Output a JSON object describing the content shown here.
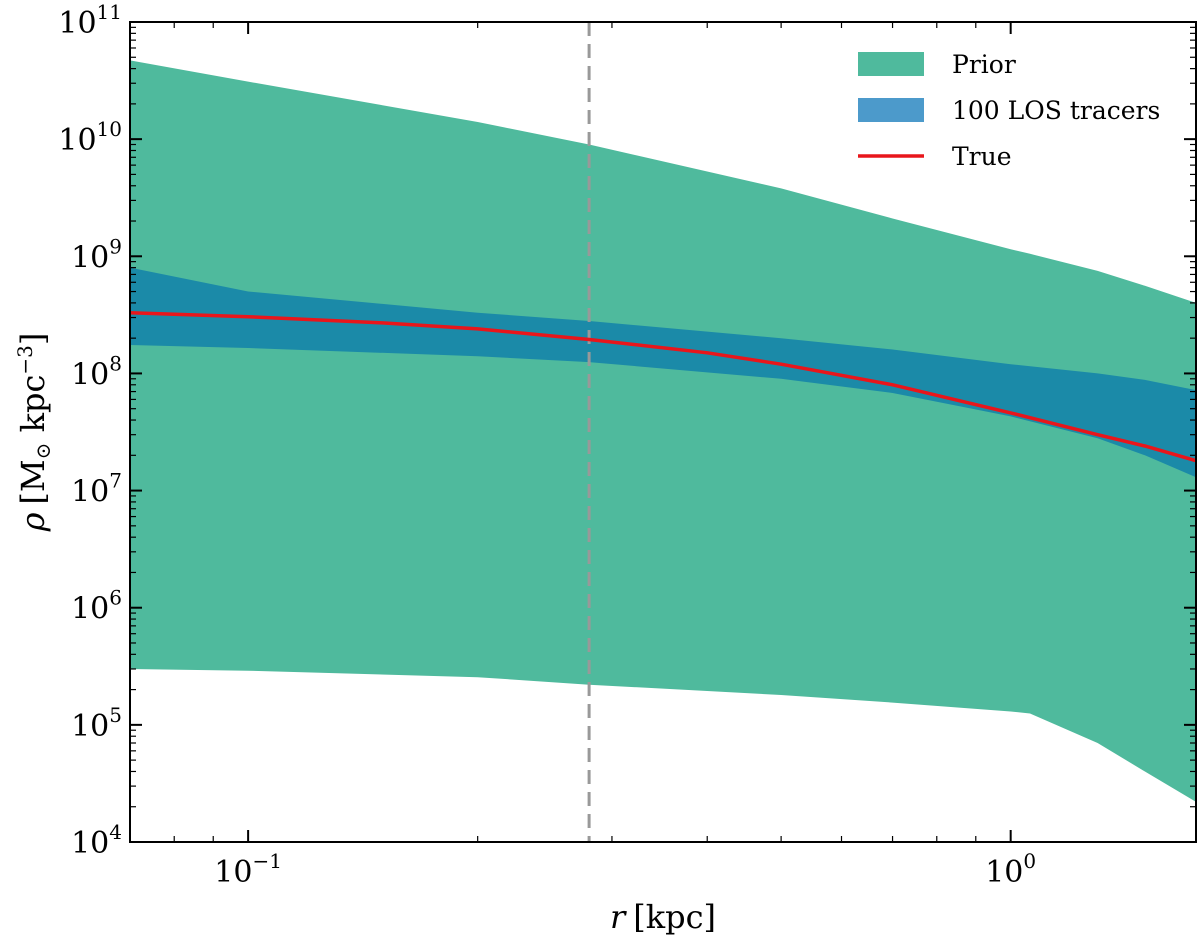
{
  "chart_data": {
    "type": "area",
    "xscale": "log",
    "yscale": "log",
    "xlim": [
      0.07,
      1.75
    ],
    "ylim": [
      10000,
      100000000000
    ],
    "xlabel": {
      "sym": "r",
      "unit": "[kpc]"
    },
    "ylabel": {
      "sym": "ρ",
      "pre": "[M",
      "sub": "⊙",
      "mid": " kpc",
      "sup": "−3",
      "post": "]"
    },
    "x_ticks": [
      {
        "value": 0.1,
        "base": "10",
        "exp": "−1"
      },
      {
        "value": 1,
        "base": "10",
        "exp": "0"
      }
    ],
    "y_ticks": [
      {
        "value": 10000,
        "base": "10",
        "exp": "4"
      },
      {
        "value": 100000,
        "base": "10",
        "exp": "5"
      },
      {
        "value": 1000000,
        "base": "10",
        "exp": "6"
      },
      {
        "value": 10000000,
        "base": "10",
        "exp": "7"
      },
      {
        "value": 100000000,
        "base": "10",
        "exp": "8"
      },
      {
        "value": 1000000000,
        "base": "10",
        "exp": "9"
      },
      {
        "value": 10000000000,
        "base": "10",
        "exp": "10"
      },
      {
        "value": 100000000000,
        "base": "10",
        "exp": "11"
      }
    ],
    "vline": {
      "x": 0.28,
      "style": "dashed",
      "color": "#999999"
    },
    "series": [
      {
        "name": "Prior",
        "kind": "band",
        "color": "#4fba9d",
        "x": [
          0.07,
          0.1,
          0.2,
          0.28,
          0.5,
          0.7,
          1.0,
          1.06,
          1.3,
          1.5,
          1.75
        ],
        "upper": [
          47000000000,
          31000000000,
          14000000000,
          9000000000,
          3800000000,
          2100000000,
          1150000000,
          1050000000,
          750000000,
          560000000,
          400000000
        ],
        "lower": [
          300000,
          290000,
          255000,
          220000,
          180000,
          155000,
          130000,
          125000,
          70000,
          40000,
          22000
        ]
      },
      {
        "name": "100 LOS tracers",
        "kind": "band",
        "color": "#1b8aa8",
        "legend_color": "#4c9acb",
        "x": [
          0.07,
          0.1,
          0.2,
          0.28,
          0.5,
          0.7,
          1.0,
          1.3,
          1.5,
          1.75
        ],
        "upper": [
          800000000,
          500000000,
          330000000,
          280000000,
          200000000,
          160000000,
          120000000,
          100000000,
          88000000,
          72000000
        ],
        "lower": [
          175000000,
          165000000,
          140000000,
          125000000,
          90000000,
          68000000,
          43000000,
          28000000,
          20000000,
          13000000
        ]
      },
      {
        "name": "True",
        "kind": "line",
        "color": "#e8161b",
        "x": [
          0.07,
          0.1,
          0.15,
          0.2,
          0.28,
          0.4,
          0.5,
          0.7,
          1.0,
          1.3,
          1.5,
          1.75
        ],
        "y": [
          330000000,
          305000000,
          270000000,
          240000000,
          195000000,
          150000000,
          120000000,
          80000000,
          46000000,
          30000000,
          24000000,
          18000000
        ]
      }
    ],
    "legend": {
      "position": "upper-right",
      "entries": [
        {
          "label": "Prior",
          "color": "#4fba9d",
          "kind": "patch"
        },
        {
          "label": "100 LOS tracers",
          "color": "#4c9acb",
          "kind": "patch"
        },
        {
          "label": "True",
          "color": "#e8161b",
          "kind": "line"
        }
      ]
    }
  }
}
